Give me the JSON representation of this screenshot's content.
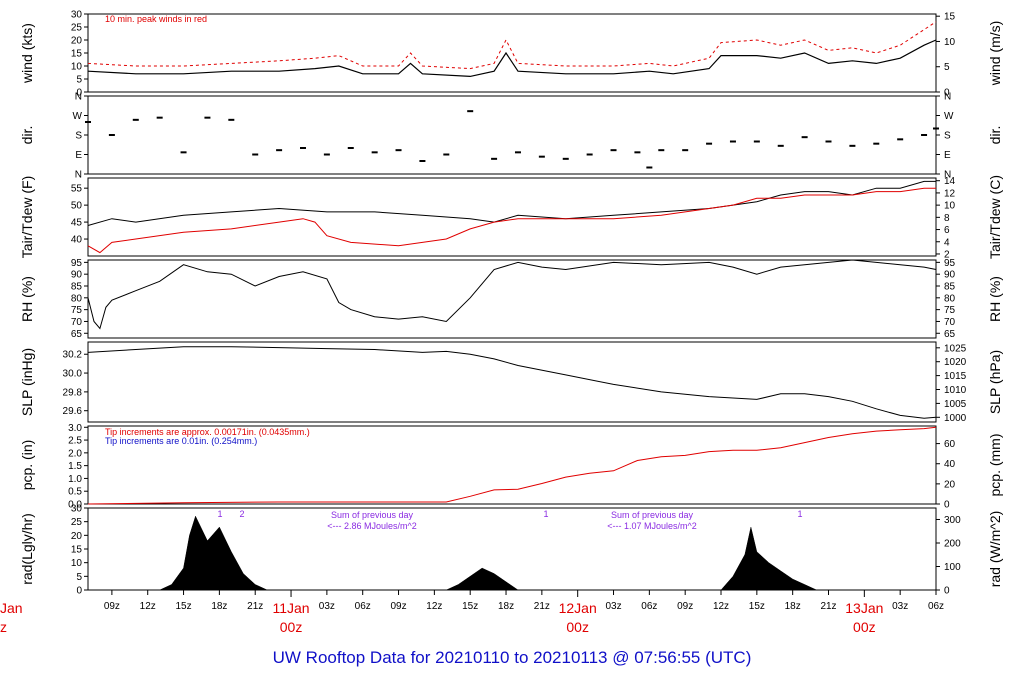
{
  "title": "UW Rooftop Data for 20210110  to  20210113 @ 07:56:55  (UTC)",
  "colors": {
    "primary": "#000000",
    "red": "#e00000",
    "blue": "#1010c8",
    "purple": "#8a2be2"
  },
  "x_axis": {
    "hour_ticks": [
      "09z",
      "12z",
      "15z",
      "18z",
      "21z",
      "03z",
      "06z",
      "09z",
      "12z",
      "15z",
      "18z",
      "21z",
      "03z",
      "06z",
      "09z",
      "12z",
      "15z",
      "18z",
      "21z",
      "03z",
      "06z"
    ],
    "day_labels": [
      {
        "top": "11Jan",
        "bottom": "00z"
      },
      {
        "top": "12Jan",
        "bottom": "00z"
      },
      {
        "top": "13Jan",
        "bottom": "00z"
      }
    ],
    "clipped_left_label": {
      "top": "Jan",
      "bottom": "z"
    }
  },
  "panels": {
    "wind": {
      "left_label": "wind (kts)",
      "right_label": "wind (m/s)",
      "left_ticks": [
        "0",
        "5",
        "10",
        "15",
        "20",
        "25",
        "30"
      ],
      "right_ticks": [
        "0",
        "5",
        "10",
        "15"
      ],
      "note": "10 min. peak winds in red"
    },
    "dir": {
      "left_label": "dir.",
      "right_label": "dir.",
      "left_ticks": [
        "N",
        "E",
        "S",
        "W",
        "N"
      ],
      "right_ticks": [
        "N",
        "E",
        "S",
        "W",
        "N"
      ]
    },
    "temp": {
      "left_label": "Tair/Tdew (F)",
      "right_label": "Tair/Tdew (C)",
      "left_ticks": [
        "40",
        "45",
        "50",
        "55"
      ],
      "right_ticks": [
        "2",
        "4",
        "6",
        "8",
        "10",
        "12",
        "14"
      ]
    },
    "rh": {
      "left_label": "RH (%)",
      "right_label": "RH (%)",
      "left_ticks": [
        "65",
        "70",
        "75",
        "80",
        "85",
        "90",
        "95"
      ],
      "right_ticks": [
        "65",
        "70",
        "75",
        "80",
        "85",
        "90",
        "95"
      ]
    },
    "slp": {
      "left_label": "SLP (inHg)",
      "right_label": "SLP (hPa)",
      "left_ticks": [
        "29.6",
        "29.8",
        "30.0",
        "30.2"
      ],
      "right_ticks": [
        "1000",
        "1005",
        "1010",
        "1015",
        "1020",
        "1025"
      ]
    },
    "pcp": {
      "left_label": "pcp. (in)",
      "right_label": "pcp. (mm)",
      "left_ticks": [
        "0.0",
        "0.5",
        "1.0",
        "1.5",
        "2.0",
        "2.5",
        "3.0"
      ],
      "right_ticks": [
        "0",
        "20",
        "40",
        "60"
      ],
      "note_red": "Tip increments are approx. 0.00171in. (0.0435mm.)",
      "note_blue": "Tip increments are 0.01in. (0.254mm.)"
    },
    "rad": {
      "left_label": "rad(Lgly/hr)",
      "right_label": "rad (W/m^2)",
      "left_ticks": [
        "0",
        "5",
        "10",
        "15",
        "20",
        "25",
        "30"
      ],
      "right_ticks": [
        "0",
        "100",
        "200",
        "300"
      ],
      "sum_notes": [
        {
          "line1": "Sum of previous day",
          "line2": "<--- 2.86 MJoules/m^2"
        },
        {
          "line1": "Sum of previous day",
          "line2": "<--- 1.07 MJoules/m^2"
        }
      ],
      "marks": [
        "1",
        "2",
        "1",
        "1"
      ]
    }
  },
  "chart_data": {
    "type": "line",
    "x_range_hours": [
      0,
      71
    ],
    "x_note": "hours since 20210110 07z",
    "series": [
      {
        "name": "wind",
        "unit": "kts",
        "points": [
          [
            0,
            8
          ],
          [
            4,
            7
          ],
          [
            8,
            7
          ],
          [
            12,
            8
          ],
          [
            16,
            8
          ],
          [
            19,
            9
          ],
          [
            21,
            10
          ],
          [
            23,
            7
          ],
          [
            26,
            7
          ],
          [
            27,
            11
          ],
          [
            28,
            7
          ],
          [
            32,
            6
          ],
          [
            34,
            8
          ],
          [
            35,
            15
          ],
          [
            36,
            8
          ],
          [
            40,
            7
          ],
          [
            44,
            7
          ],
          [
            47,
            8
          ],
          [
            49,
            7
          ],
          [
            52,
            9
          ],
          [
            53,
            14
          ],
          [
            56,
            14
          ],
          [
            58,
            13
          ],
          [
            60,
            15
          ],
          [
            62,
            11
          ],
          [
            64,
            12
          ],
          [
            66,
            11
          ],
          [
            68,
            13
          ],
          [
            70,
            18
          ],
          [
            71,
            20
          ]
        ]
      },
      {
        "name": "10 min. peak winds",
        "unit": "kts",
        "points": [
          [
            0,
            11
          ],
          [
            4,
            10
          ],
          [
            8,
            10
          ],
          [
            12,
            11
          ],
          [
            16,
            12
          ],
          [
            19,
            13
          ],
          [
            21,
            14
          ],
          [
            23,
            10
          ],
          [
            26,
            10
          ],
          [
            27,
            15
          ],
          [
            28,
            10
          ],
          [
            32,
            9
          ],
          [
            34,
            11
          ],
          [
            35,
            20
          ],
          [
            36,
            11
          ],
          [
            40,
            10
          ],
          [
            44,
            10
          ],
          [
            47,
            11
          ],
          [
            49,
            10
          ],
          [
            52,
            13
          ],
          [
            53,
            19
          ],
          [
            56,
            20
          ],
          [
            58,
            18
          ],
          [
            60,
            20
          ],
          [
            62,
            16
          ],
          [
            64,
            17
          ],
          [
            66,
            15
          ],
          [
            68,
            18
          ],
          [
            70,
            24
          ],
          [
            71,
            27
          ]
        ]
      },
      {
        "name": "dir",
        "unit": "deg",
        "points": [
          [
            0,
            240
          ],
          [
            2,
            180
          ],
          [
            4,
            250
          ],
          [
            6,
            260
          ],
          [
            8,
            100
          ],
          [
            10,
            260
          ],
          [
            12,
            250
          ],
          [
            14,
            90
          ],
          [
            16,
            110
          ],
          [
            18,
            120
          ],
          [
            20,
            90
          ],
          [
            22,
            120
          ],
          [
            24,
            100
          ],
          [
            26,
            110
          ],
          [
            28,
            60
          ],
          [
            30,
            90
          ],
          [
            32,
            290
          ],
          [
            34,
            70
          ],
          [
            36,
            100
          ],
          [
            38,
            80
          ],
          [
            40,
            70
          ],
          [
            42,
            90
          ],
          [
            44,
            110
          ],
          [
            46,
            100
          ],
          [
            47,
            30
          ],
          [
            48,
            110
          ],
          [
            50,
            110
          ],
          [
            52,
            140
          ],
          [
            54,
            150
          ],
          [
            56,
            150
          ],
          [
            58,
            130
          ],
          [
            60,
            170
          ],
          [
            62,
            150
          ],
          [
            64,
            130
          ],
          [
            66,
            140
          ],
          [
            68,
            160
          ],
          [
            70,
            180
          ],
          [
            71,
            210
          ]
        ]
      },
      {
        "name": "Tair",
        "unit": "F",
        "points": [
          [
            0,
            44
          ],
          [
            2,
            46
          ],
          [
            4,
            45
          ],
          [
            8,
            47
          ],
          [
            12,
            48
          ],
          [
            16,
            49
          ],
          [
            20,
            48
          ],
          [
            24,
            48
          ],
          [
            28,
            47
          ],
          [
            32,
            46
          ],
          [
            34,
            45
          ],
          [
            36,
            47
          ],
          [
            40,
            46
          ],
          [
            44,
            47
          ],
          [
            48,
            48
          ],
          [
            52,
            49
          ],
          [
            54,
            50
          ],
          [
            56,
            51
          ],
          [
            58,
            53
          ],
          [
            60,
            54
          ],
          [
            62,
            54
          ],
          [
            64,
            53
          ],
          [
            66,
            55
          ],
          [
            68,
            55
          ],
          [
            70,
            57
          ],
          [
            71,
            57
          ]
        ]
      },
      {
        "name": "Tdew",
        "unit": "F",
        "points": [
          [
            0,
            38
          ],
          [
            1,
            36
          ],
          [
            2,
            39
          ],
          [
            4,
            40
          ],
          [
            8,
            42
          ],
          [
            12,
            43
          ],
          [
            16,
            45
          ],
          [
            18,
            46
          ],
          [
            19,
            45
          ],
          [
            20,
            41
          ],
          [
            22,
            39
          ],
          [
            26,
            38
          ],
          [
            30,
            40
          ],
          [
            32,
            43
          ],
          [
            34,
            45
          ],
          [
            36,
            46
          ],
          [
            40,
            46
          ],
          [
            44,
            46
          ],
          [
            48,
            47
          ],
          [
            52,
            49
          ],
          [
            54,
            50
          ],
          [
            56,
            52
          ],
          [
            58,
            52
          ],
          [
            60,
            53
          ],
          [
            62,
            53
          ],
          [
            64,
            53
          ],
          [
            66,
            54
          ],
          [
            68,
            54
          ],
          [
            70,
            55
          ],
          [
            71,
            55
          ]
        ]
      },
      {
        "name": "RH",
        "unit": "%",
        "points": [
          [
            0,
            80
          ],
          [
            0.5,
            70
          ],
          [
            1,
            67
          ],
          [
            1.5,
            76
          ],
          [
            2,
            79
          ],
          [
            4,
            83
          ],
          [
            6,
            87
          ],
          [
            8,
            94
          ],
          [
            10,
            91
          ],
          [
            12,
            90
          ],
          [
            14,
            85
          ],
          [
            16,
            89
          ],
          [
            18,
            91
          ],
          [
            20,
            88
          ],
          [
            21,
            78
          ],
          [
            22,
            75
          ],
          [
            24,
            72
          ],
          [
            26,
            71
          ],
          [
            28,
            72
          ],
          [
            30,
            70
          ],
          [
            32,
            80
          ],
          [
            34,
            92
          ],
          [
            36,
            95
          ],
          [
            38,
            93
          ],
          [
            40,
            92
          ],
          [
            44,
            95
          ],
          [
            48,
            94
          ],
          [
            52,
            95
          ],
          [
            54,
            93
          ],
          [
            56,
            90
          ],
          [
            58,
            93
          ],
          [
            60,
            94
          ],
          [
            62,
            95
          ],
          [
            64,
            96
          ],
          [
            66,
            95
          ],
          [
            68,
            94
          ],
          [
            70,
            93
          ],
          [
            71,
            92
          ]
        ]
      },
      {
        "name": "SLP",
        "unit": "inHg",
        "points": [
          [
            0,
            30.22
          ],
          [
            4,
            30.25
          ],
          [
            8,
            30.28
          ],
          [
            12,
            30.28
          ],
          [
            16,
            30.27
          ],
          [
            20,
            30.26
          ],
          [
            24,
            30.25
          ],
          [
            28,
            30.22
          ],
          [
            30,
            30.23
          ],
          [
            32,
            30.2
          ],
          [
            34,
            30.15
          ],
          [
            36,
            30.08
          ],
          [
            40,
            29.98
          ],
          [
            44,
            29.88
          ],
          [
            48,
            29.8
          ],
          [
            52,
            29.75
          ],
          [
            56,
            29.72
          ],
          [
            58,
            29.78
          ],
          [
            60,
            29.78
          ],
          [
            62,
            29.75
          ],
          [
            64,
            29.7
          ],
          [
            66,
            29.62
          ],
          [
            68,
            29.55
          ],
          [
            70,
            29.52
          ],
          [
            71,
            29.53
          ]
        ]
      },
      {
        "name": "pcp",
        "unit": "in",
        "points": [
          [
            0,
            0.0
          ],
          [
            8,
            0.05
          ],
          [
            16,
            0.08
          ],
          [
            24,
            0.08
          ],
          [
            30,
            0.08
          ],
          [
            32,
            0.3
          ],
          [
            34,
            0.55
          ],
          [
            36,
            0.58
          ],
          [
            38,
            0.8
          ],
          [
            40,
            1.05
          ],
          [
            42,
            1.2
          ],
          [
            44,
            1.3
          ],
          [
            46,
            1.7
          ],
          [
            48,
            1.85
          ],
          [
            50,
            1.9
          ],
          [
            52,
            2.05
          ],
          [
            54,
            2.1
          ],
          [
            56,
            2.1
          ],
          [
            58,
            2.2
          ],
          [
            60,
            2.4
          ],
          [
            62,
            2.6
          ],
          [
            64,
            2.75
          ],
          [
            66,
            2.85
          ],
          [
            68,
            2.9
          ],
          [
            70,
            2.95
          ],
          [
            71,
            3.0
          ]
        ]
      },
      {
        "name": "rad",
        "unit": "Lgly/hr",
        "points": [
          [
            0,
            0
          ],
          [
            6,
            0
          ],
          [
            7,
            2
          ],
          [
            8,
            8
          ],
          [
            8.5,
            20
          ],
          [
            9,
            27
          ],
          [
            10,
            18
          ],
          [
            11,
            23
          ],
          [
            12,
            14
          ],
          [
            13,
            6
          ],
          [
            14,
            2
          ],
          [
            15,
            0
          ],
          [
            30,
            0
          ],
          [
            31,
            2
          ],
          [
            32,
            5
          ],
          [
            33,
            8
          ],
          [
            34,
            6
          ],
          [
            35,
            3
          ],
          [
            36,
            0
          ],
          [
            53,
            0
          ],
          [
            54,
            5
          ],
          [
            55,
            13
          ],
          [
            55.5,
            23
          ],
          [
            56,
            14
          ],
          [
            57,
            10
          ],
          [
            58,
            7
          ],
          [
            59,
            4
          ],
          [
            60,
            2
          ],
          [
            61,
            0
          ],
          [
            71,
            0
          ]
        ]
      }
    ]
  }
}
